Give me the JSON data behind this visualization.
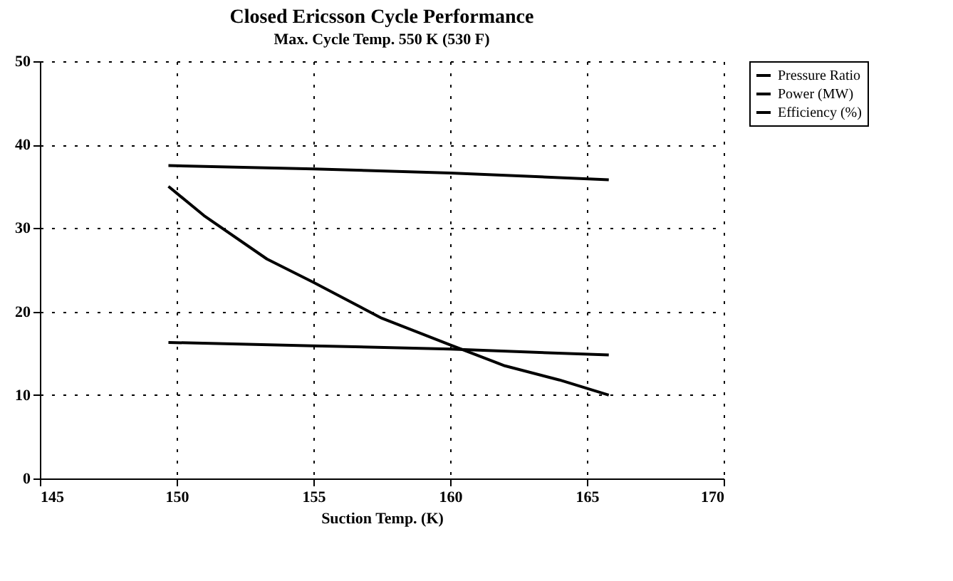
{
  "chart_data": {
    "type": "line",
    "title": "Closed Ericsson Cycle Performance",
    "subtitle": "Max. Cycle Temp.  550 K (530 F)",
    "xlabel": "Suction Temp. (K)",
    "xlim": [
      145,
      170
    ],
    "xticks": [
      145,
      150,
      155,
      160,
      165,
      170
    ],
    "ylim": [
      0,
      50
    ],
    "yticks": [
      0,
      10,
      20,
      30,
      40,
      50
    ],
    "grid": true,
    "legend": "right",
    "marker": "none",
    "line_style": "solid",
    "series": [
      {
        "name": "Pressure Ratio",
        "color": "#000000",
        "x": [
          149.7,
          155,
          160,
          165.8
        ],
        "values": [
          16.3,
          15.9,
          15.5,
          14.8
        ]
      },
      {
        "name": "Power (MW)",
        "color": "#000000",
        "x": [
          149.7,
          151,
          153.3,
          155,
          157.5,
          160,
          162,
          164,
          165.8
        ],
        "values": [
          35,
          31.5,
          26.3,
          23.5,
          19.2,
          16,
          13.5,
          11.8,
          10
        ]
      },
      {
        "name": "Efficiency (%)",
        "color": "#000000",
        "x": [
          149.7,
          155,
          160,
          165.8
        ],
        "values": [
          37.5,
          37.1,
          36.6,
          35.8
        ]
      }
    ]
  }
}
